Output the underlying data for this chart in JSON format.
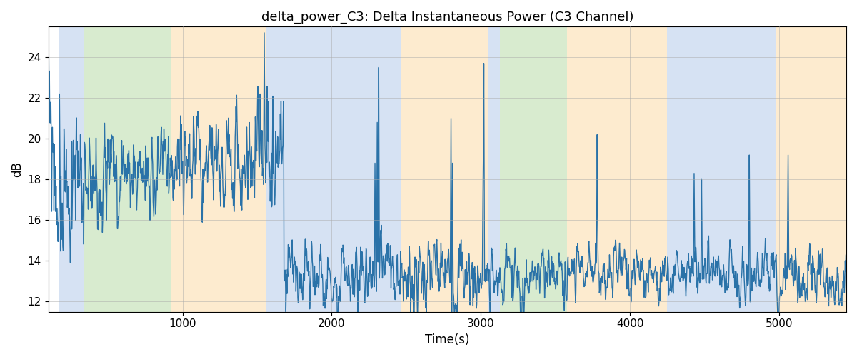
{
  "title": "delta_power_C3: Delta Instantaneous Power (C3 Channel)",
  "xlabel": "Time(s)",
  "ylabel": "dB",
  "xlim": [
    100,
    5450
  ],
  "ylim": [
    11.5,
    25.5
  ],
  "yticks": [
    12,
    14,
    16,
    18,
    20,
    22,
    24
  ],
  "xticks": [
    1000,
    2000,
    3000,
    4000,
    5000
  ],
  "line_color": "#2a72a8",
  "line_width": 1.0,
  "grid_color": "#aaaaaa",
  "bg_regions": [
    {
      "xmin": 175,
      "xmax": 340,
      "color": "#aec6e8",
      "alpha": 0.5
    },
    {
      "xmin": 340,
      "xmax": 920,
      "color": "#b2d9a0",
      "alpha": 0.5
    },
    {
      "xmin": 920,
      "xmax": 1560,
      "color": "#fdd9a0",
      "alpha": 0.5
    },
    {
      "xmin": 1560,
      "xmax": 1680,
      "color": "#aec6e8",
      "alpha": 0.5
    },
    {
      "xmin": 1680,
      "xmax": 2460,
      "color": "#aec6e8",
      "alpha": 0.5
    },
    {
      "xmin": 2460,
      "xmax": 3050,
      "color": "#fdd9a0",
      "alpha": 0.5
    },
    {
      "xmin": 3050,
      "xmax": 3130,
      "color": "#aec6e8",
      "alpha": 0.5
    },
    {
      "xmin": 3130,
      "xmax": 3580,
      "color": "#b2d9a0",
      "alpha": 0.5
    },
    {
      "xmin": 3580,
      "xmax": 3760,
      "color": "#fdd9a0",
      "alpha": 0.5
    },
    {
      "xmin": 3760,
      "xmax": 4250,
      "color": "#fdd9a0",
      "alpha": 0.5
    },
    {
      "xmin": 4250,
      "xmax": 4330,
      "color": "#aec6e8",
      "alpha": 0.5
    },
    {
      "xmin": 4330,
      "xmax": 4920,
      "color": "#aec6e8",
      "alpha": 0.5
    },
    {
      "xmin": 4920,
      "xmax": 4980,
      "color": "#aec6e8",
      "alpha": 0.5
    },
    {
      "xmin": 4980,
      "xmax": 5450,
      "color": "#fdd9a0",
      "alpha": 0.5
    }
  ],
  "title_fontsize": 13,
  "label_fontsize": 12,
  "tick_fontsize": 11,
  "figsize": [
    12,
    5
  ],
  "dpi": 100
}
